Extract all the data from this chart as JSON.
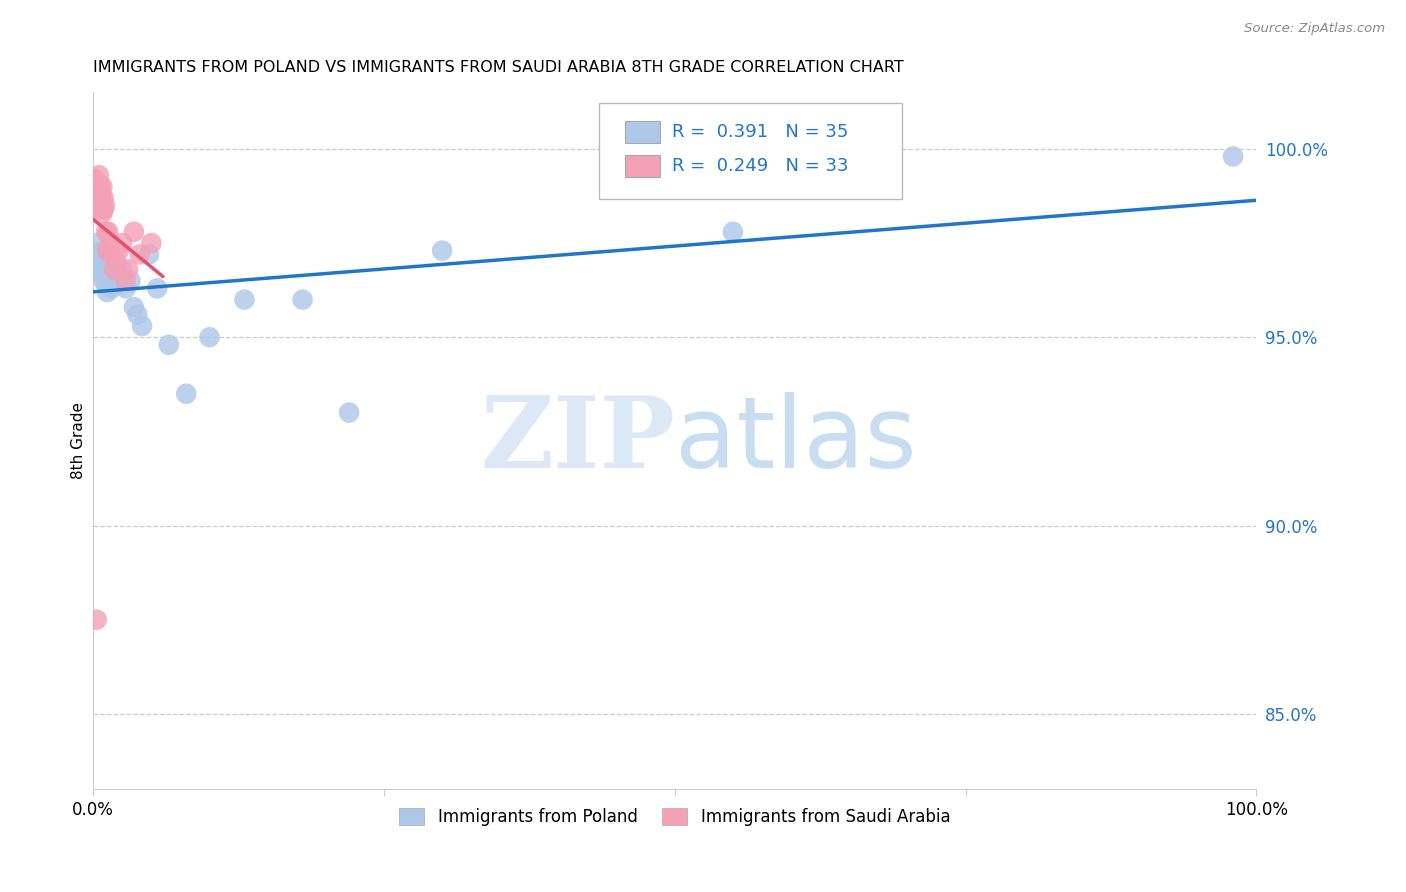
{
  "title": "IMMIGRANTS FROM POLAND VS IMMIGRANTS FROM SAUDI ARABIA 8TH GRADE CORRELATION CHART",
  "source": "Source: ZipAtlas.com",
  "ylabel": "8th Grade",
  "right_yticks": [
    85.0,
    90.0,
    95.0,
    100.0
  ],
  "right_yticklabels": [
    "85.0%",
    "90.0%",
    "95.0%",
    "100.0%"
  ],
  "legend_bottom": [
    "Immigrants from Poland",
    "Immigrants from Saudi Arabia"
  ],
  "poland_R": 0.391,
  "poland_N": 35,
  "saudi_R": 0.249,
  "saudi_N": 33,
  "poland_scatter_x": [
    0.001,
    0.002,
    0.003,
    0.004,
    0.005,
    0.006,
    0.007,
    0.008,
    0.009,
    0.01,
    0.011,
    0.012,
    0.013,
    0.015,
    0.016,
    0.018,
    0.02,
    0.022,
    0.025,
    0.028,
    0.032,
    0.035,
    0.038,
    0.042,
    0.048,
    0.055,
    0.065,
    0.08,
    0.1,
    0.13,
    0.18,
    0.22,
    0.3,
    0.55,
    0.98
  ],
  "poland_scatter_y": [
    96.8,
    97.2,
    97.5,
    97.0,
    96.9,
    97.1,
    96.7,
    97.3,
    96.5,
    96.8,
    96.4,
    96.2,
    96.6,
    96.8,
    96.3,
    96.5,
    96.4,
    96.7,
    96.8,
    96.3,
    96.5,
    95.8,
    95.6,
    95.3,
    97.2,
    96.3,
    94.8,
    93.5,
    95.0,
    96.0,
    96.0,
    93.0,
    97.3,
    97.8,
    99.8
  ],
  "saudi_scatter_x": [
    0.001,
    0.002,
    0.002,
    0.003,
    0.003,
    0.004,
    0.004,
    0.005,
    0.005,
    0.006,
    0.006,
    0.007,
    0.007,
    0.008,
    0.008,
    0.009,
    0.009,
    0.01,
    0.011,
    0.012,
    0.013,
    0.015,
    0.016,
    0.018,
    0.02,
    0.022,
    0.025,
    0.028,
    0.03,
    0.035,
    0.04,
    0.05,
    0.003
  ],
  "saudi_scatter_y": [
    99.2,
    98.8,
    99.0,
    98.5,
    98.9,
    98.6,
    99.1,
    98.4,
    99.3,
    98.7,
    99.0,
    98.8,
    98.5,
    99.0,
    98.3,
    98.7,
    98.4,
    98.5,
    97.8,
    97.3,
    97.8,
    97.5,
    97.2,
    96.8,
    97.0,
    97.3,
    97.5,
    96.5,
    96.8,
    97.8,
    97.2,
    97.5,
    87.5
  ],
  "xlim": [
    0.0,
    1.0
  ],
  "ylim": [
    83.0,
    101.5
  ],
  "poland_line_color": "#2176c7",
  "saudi_line_color": "#e05070",
  "poland_marker_color": "#aec6e8",
  "saudi_marker_color": "#f4a0b5",
  "grid_color": "#cccccc",
  "watermark_zip_color": "#dce8f5",
  "watermark_atlas_color": "#c8ddf0",
  "title_fontsize": 11.5,
  "source_fontsize": 9.5
}
